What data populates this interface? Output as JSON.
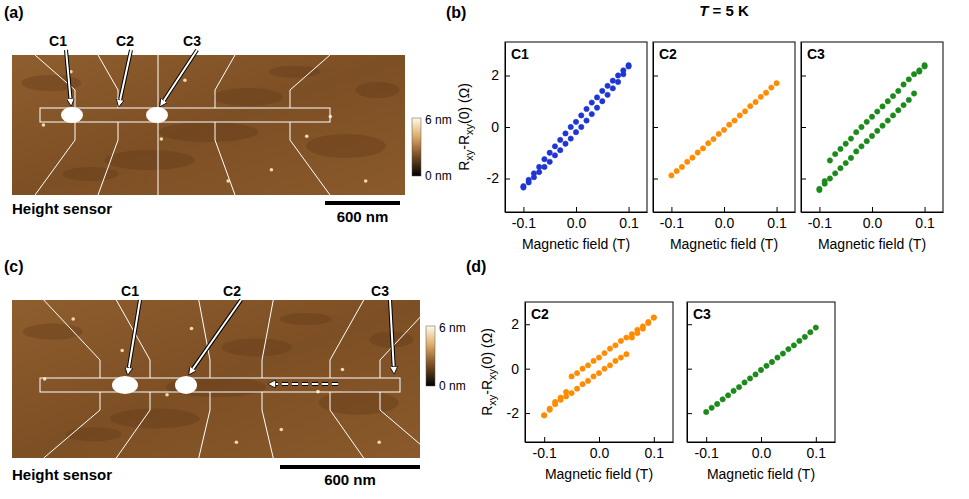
{
  "header": {
    "title": "T = 5 K"
  },
  "panel_labels": [
    "(a)",
    "(b)",
    "(c)",
    "(d)"
  ],
  "images": [
    {
      "labels": [
        "C1",
        "C2",
        "C3"
      ],
      "colorbar_labels": [
        "6 nm",
        "0 nm"
      ],
      "caption": "Height sensor",
      "scale_bar": "600 nm"
    },
    {
      "labels": [
        "C1",
        "C2",
        "C3"
      ],
      "colorbar_labels": [
        "6 nm",
        "0 nm"
      ],
      "caption": "Height sensor",
      "scale_bar": "600 nm"
    }
  ],
  "chart_data": [
    {
      "type": "scatter",
      "title": "C1",
      "x_label": "Magnetic field (T)",
      "y_label": "Rxy-Rxy(0) (Ω)",
      "x": [
        -0.1,
        -0.09,
        -0.08,
        -0.07,
        -0.06,
        -0.05,
        -0.04,
        -0.03,
        -0.02,
        -0.01,
        0,
        0.01,
        0.02,
        0.03,
        0.04,
        0.05,
        0.06,
        0.07,
        0.08,
        0.09,
        0.1
      ],
      "series": [
        {
          "color": "#1f35d6",
          "marker": "circle",
          "values": [
            -2.3,
            -2.05,
            -1.8,
            -1.55,
            -1.25,
            -1.0,
            -0.75,
            -0.5,
            -0.25,
            0.0,
            0.2,
            0.45,
            0.7,
            0.95,
            1.15,
            1.4,
            1.6,
            1.8,
            2.0,
            2.2,
            2.4
          ]
        },
        {
          "color": "#1f35d6",
          "marker": "circle",
          "values": [
            -2.35,
            -2.15,
            -1.95,
            -1.75,
            -1.55,
            -1.35,
            -1.1,
            -0.9,
            -0.65,
            -0.45,
            -0.2,
            0.0,
            0.25,
            0.5,
            0.75,
            1.0,
            1.25,
            1.5,
            1.75,
            2.05,
            2.35
          ]
        }
      ],
      "xlim": [
        -0.135,
        0.135
      ],
      "xticks": [
        -0.1,
        {
          "value": 0,
          "label": "0.0"
        },
        0.1
      ],
      "ylim": [
        -3.3,
        3.3
      ],
      "yticks": [
        -2,
        0,
        2
      ]
    },
    {
      "type": "scatter",
      "title": "C2",
      "x_label": "Magnetic field (T)",
      "x": [
        -0.1,
        -0.09,
        -0.08,
        -0.07,
        -0.06,
        -0.05,
        -0.04,
        -0.03,
        -0.02,
        -0.01,
        0,
        0.01,
        0.02,
        0.03,
        0.04,
        0.05,
        0.06,
        0.07,
        0.08,
        0.09,
        0.1
      ],
      "series": [
        {
          "color": "#ff8c00",
          "marker": "circle",
          "values": [
            -1.88,
            -1.71,
            -1.55,
            -1.35,
            -1.19,
            -0.99,
            -0.83,
            -0.63,
            -0.47,
            -0.27,
            -0.11,
            0.09,
            0.25,
            0.45,
            0.61,
            0.81,
            0.97,
            1.17,
            1.33,
            1.53,
            1.7
          ]
        }
      ],
      "xlim": [
        -0.135,
        0.135
      ],
      "xticks": [
        -0.1,
        {
          "value": 0,
          "label": "0.0"
        },
        0.1
      ],
      "ylim": [
        -3.3,
        3.3
      ],
      "yticks": [
        -2,
        0,
        2
      ],
      "tick_labels": "x"
    },
    {
      "type": "scatter",
      "title": "C3",
      "x_label": "Magnetic field (T)",
      "x": [
        -0.1,
        -0.09,
        -0.08,
        -0.07,
        -0.06,
        -0.05,
        -0.04,
        -0.03,
        -0.02,
        -0.01,
        0,
        0.01,
        0.02,
        0.03,
        0.04,
        0.05,
        0.06,
        0.07,
        0.08,
        0.09,
        0.1
      ],
      "series": [
        {
          "color": "#1b8a1b",
          "marker": "circle",
          "values": [
            -2.4,
            -2.1,
            -1.3,
            -1.05,
            -0.85,
            -0.65,
            -0.45,
            -0.2,
            0.0,
            0.2,
            0.4,
            0.6,
            0.8,
            1.0,
            1.2,
            1.4,
            1.65,
            1.85,
            2.05,
            2.2,
            2.4
          ]
        },
        {
          "color": "#1b8a1b",
          "marker": "circle",
          "values": [
            -2.45,
            -2.2,
            -2.0,
            -1.8,
            -1.6,
            -1.4,
            -1.2,
            -0.95,
            -0.75,
            -0.55,
            -0.35,
            -0.15,
            0.05,
            0.25,
            0.45,
            0.65,
            0.85,
            1.05,
            1.3,
            2.15,
            2.35
          ]
        }
      ],
      "xlim": [
        -0.135,
        0.135
      ],
      "xticks": [
        -0.1,
        {
          "value": 0,
          "label": "0.0"
        },
        0.1
      ],
      "ylim": [
        -3.3,
        3.3
      ],
      "yticks": [
        -2,
        0,
        2
      ],
      "tick_labels": "x"
    },
    {
      "type": "scatter",
      "title": "C2",
      "x_label": "Magnetic field (T)",
      "y_label": "Rxy-Rxy(0) (Ω)",
      "x": [
        -0.1,
        -0.09,
        -0.08,
        -0.07,
        -0.06,
        -0.05,
        -0.04,
        -0.03,
        -0.02,
        -0.01,
        0,
        0.01,
        0.02,
        0.03,
        0.04,
        0.05,
        0.06,
        0.07,
        0.08,
        0.09,
        0.1
      ],
      "series": [
        {
          "color": "#ff8c00",
          "marker": "circle",
          "values": [
            -2.1,
            -1.8,
            -1.5,
            -1.3,
            -1.05,
            -0.35,
            -0.2,
            0.0,
            0.15,
            0.35,
            0.5,
            0.7,
            0.9,
            1.05,
            1.25,
            1.4,
            1.55,
            1.75,
            1.9,
            2.1,
            2.3
          ]
        },
        {
          "color": "#ff8c00",
          "marker": "circle",
          "values": [
            -2.1,
            -1.85,
            -1.6,
            -1.4,
            -1.25,
            -1.1,
            -0.9,
            -0.7,
            -0.55,
            -0.35,
            -0.2,
            0.0,
            0.15,
            0.35,
            0.5,
            0.65,
            1.4,
            1.6,
            1.8,
            2.05,
            2.3
          ]
        }
      ],
      "xlim": [
        -0.135,
        0.135
      ],
      "xticks": [
        -0.1,
        {
          "value": 0,
          "label": "0.0"
        },
        0.1
      ],
      "ylim": [
        -3.3,
        3.0
      ],
      "yticks": [
        -2,
        0,
        2
      ]
    },
    {
      "type": "scatter",
      "title": "C3",
      "x_label": "Magnetic field (T)",
      "x": [
        -0.1,
        -0.09,
        -0.08,
        -0.07,
        -0.06,
        -0.05,
        -0.04,
        -0.03,
        -0.02,
        -0.01,
        0,
        0.01,
        0.02,
        0.03,
        0.04,
        0.05,
        0.06,
        0.07,
        0.08,
        0.09,
        0.1
      ],
      "series": [
        {
          "color": "#1b8a1b",
          "marker": "circle",
          "values": [
            -1.95,
            -1.76,
            -1.59,
            -1.38,
            -1.2,
            -1.0,
            -0.83,
            -0.62,
            -0.44,
            -0.26,
            -0.06,
            0.13,
            0.3,
            0.5,
            0.68,
            0.88,
            1.05,
            1.25,
            1.43,
            1.64,
            1.85
          ]
        }
      ],
      "xlim": [
        -0.135,
        0.135
      ],
      "xticks": [
        -0.1,
        {
          "value": 0,
          "label": "0.0"
        },
        0.1
      ],
      "ylim": [
        -3.3,
        3.0
      ],
      "yticks": [
        -2,
        0,
        2
      ],
      "tick_labels": "x"
    }
  ]
}
